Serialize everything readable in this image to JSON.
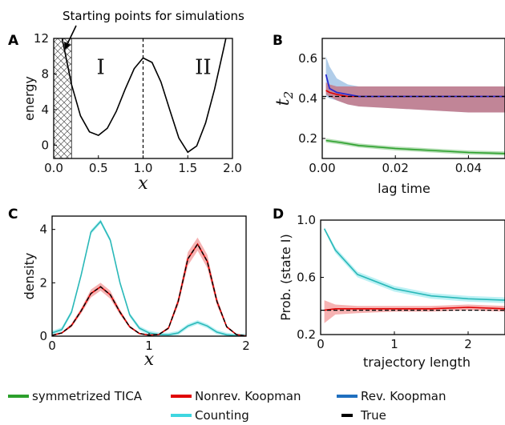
{
  "annotation": "Starting points for simulations",
  "legend": [
    {
      "label": "symmetrized TICA",
      "color": "#2ca02c"
    },
    {
      "label": "Nonrev. Koopman",
      "color": "#e00000"
    },
    {
      "label": "Rev. Koopman",
      "color": "#1f6fbf"
    },
    {
      "label": "Counting",
      "color": "#3fd6e0"
    },
    {
      "label": "True",
      "color": "#000000"
    }
  ],
  "chart_data": [
    {
      "panel": "A",
      "type": "line",
      "xlabel": "x",
      "ylabel": "energy",
      "xlim": [
        0,
        2
      ],
      "ylim": [
        -1.5,
        12
      ],
      "xticks": [
        "0.0",
        "0.5",
        "1.0",
        "1.5",
        "2.0"
      ],
      "yticks": [
        "0",
        "4",
        "8",
        "12"
      ],
      "region_labels": [
        "I",
        "II"
      ],
      "divider_x": 1.0,
      "hatched_region": [
        0.0,
        0.2
      ],
      "series": [
        {
          "x": [
            0.0,
            0.1,
            0.2,
            0.3,
            0.4,
            0.5,
            0.6,
            0.7,
            0.8,
            0.9,
            1.0,
            1.1,
            1.2,
            1.3,
            1.4,
            1.5,
            1.6,
            1.7,
            1.8,
            1.9,
            2.0
          ],
          "y": [
            18.0,
            11.7,
            6.8,
            3.3,
            1.5,
            1.1,
            1.9,
            3.8,
            6.3,
            8.6,
            9.8,
            9.3,
            7.1,
            3.9,
            0.8,
            -0.8,
            -0.1,
            2.5,
            6.3,
            10.8,
            15.4
          ]
        }
      ]
    },
    {
      "panel": "B",
      "type": "line",
      "xlabel": "lag time",
      "ylabel": "t2",
      "xlim": [
        0,
        0.05
      ],
      "ylim": [
        0.1,
        0.7
      ],
      "xticks": [
        "0.00",
        "0.02",
        "0.04"
      ],
      "yticks": [
        "0.2",
        "0.4",
        "0.6"
      ],
      "true_value": 0.41,
      "series": [
        {
          "name": "Nonrev. Koopman",
          "x": [
            0.001,
            0.002,
            0.004,
            0.007,
            0.01,
            0.02,
            0.03,
            0.04,
            0.05
          ],
          "y": [
            0.44,
            0.43,
            0.42,
            0.41,
            0.41,
            0.41,
            0.41,
            0.41,
            0.41
          ],
          "lower": [
            0.42,
            0.41,
            0.39,
            0.37,
            0.36,
            0.35,
            0.34,
            0.33,
            0.33
          ],
          "upper": [
            0.48,
            0.47,
            0.46,
            0.46,
            0.46,
            0.46,
            0.46,
            0.46,
            0.46
          ]
        },
        {
          "name": "Rev. Koopman",
          "x": [
            0.001,
            0.002,
            0.004,
            0.007,
            0.01,
            0.02,
            0.03,
            0.04,
            0.05
          ],
          "y": [
            0.52,
            0.45,
            0.43,
            0.42,
            0.41,
            0.41,
            0.41,
            0.41,
            0.41
          ],
          "lower": [
            0.41,
            0.4,
            0.39,
            0.37,
            0.36,
            0.35,
            0.34,
            0.33,
            0.33
          ],
          "upper": [
            0.61,
            0.56,
            0.5,
            0.47,
            0.46,
            0.46,
            0.46,
            0.46,
            0.46
          ]
        },
        {
          "name": "symmetrized TICA",
          "x": [
            0.001,
            0.005,
            0.01,
            0.02,
            0.03,
            0.04,
            0.05
          ],
          "y": [
            0.19,
            0.18,
            0.165,
            0.15,
            0.14,
            0.13,
            0.125
          ],
          "lower": [
            0.18,
            0.17,
            0.155,
            0.14,
            0.13,
            0.12,
            0.115
          ],
          "upper": [
            0.2,
            0.19,
            0.175,
            0.16,
            0.15,
            0.14,
            0.135
          ]
        }
      ]
    },
    {
      "panel": "C",
      "type": "line",
      "xlabel": "x",
      "ylabel": "density",
      "xlim": [
        0,
        2
      ],
      "ylim": [
        0,
        4.5
      ],
      "xticks": [
        "0",
        "1",
        "2"
      ],
      "yticks": [
        "0",
        "2",
        "4"
      ],
      "series": [
        {
          "name": "Counting",
          "x": [
            0.0,
            0.1,
            0.2,
            0.3,
            0.4,
            0.5,
            0.6,
            0.7,
            0.8,
            0.9,
            1.0,
            1.1,
            1.2,
            1.3,
            1.4,
            1.5,
            1.6,
            1.7,
            1.8,
            1.9,
            2.0
          ],
          "y": [
            0.12,
            0.25,
            0.9,
            2.3,
            3.9,
            4.3,
            3.6,
            2.0,
            0.8,
            0.3,
            0.12,
            0.06,
            0.05,
            0.12,
            0.38,
            0.52,
            0.38,
            0.15,
            0.05,
            0.02,
            0.01
          ]
        },
        {
          "name": "Nonrev. Koopman",
          "x": [
            0.0,
            0.1,
            0.2,
            0.3,
            0.4,
            0.5,
            0.6,
            0.7,
            0.8,
            0.9,
            1.0,
            1.1,
            1.2,
            1.3,
            1.4,
            1.5,
            1.6,
            1.7,
            1.8,
            1.9,
            2.0
          ],
          "y": [
            0.03,
            0.12,
            0.4,
            0.95,
            1.6,
            1.85,
            1.55,
            0.9,
            0.35,
            0.1,
            0.04,
            0.06,
            0.3,
            1.3,
            2.9,
            3.45,
            2.8,
            1.3,
            0.35,
            0.06,
            0.01
          ],
          "lower": [
            0.02,
            0.1,
            0.33,
            0.85,
            1.45,
            1.7,
            1.4,
            0.8,
            0.3,
            0.08,
            0.03,
            0.05,
            0.25,
            1.15,
            2.65,
            3.2,
            2.55,
            1.15,
            0.3,
            0.05,
            0.01
          ],
          "upper": [
            0.05,
            0.15,
            0.47,
            1.05,
            1.75,
            2.0,
            1.7,
            1.0,
            0.4,
            0.13,
            0.05,
            0.08,
            0.36,
            1.45,
            3.15,
            3.7,
            3.05,
            1.45,
            0.4,
            0.08,
            0.02
          ]
        },
        {
          "name": "True",
          "x": [
            0.0,
            0.1,
            0.2,
            0.3,
            0.4,
            0.5,
            0.6,
            0.7,
            0.8,
            0.9,
            1.0,
            1.1,
            1.2,
            1.3,
            1.4,
            1.5,
            1.6,
            1.7,
            1.8,
            1.9,
            2.0
          ],
          "y": [
            0.03,
            0.12,
            0.4,
            0.95,
            1.6,
            1.85,
            1.55,
            0.9,
            0.35,
            0.1,
            0.04,
            0.06,
            0.3,
            1.3,
            2.9,
            3.45,
            2.8,
            1.3,
            0.35,
            0.06,
            0.01
          ]
        }
      ]
    },
    {
      "panel": "D",
      "type": "line",
      "xlabel": "trajectory length",
      "ylabel": "Prob. (state I)",
      "xlim": [
        0,
        2.5
      ],
      "ylim": [
        0.2,
        1.0
      ],
      "xticks": [
        "0",
        "1",
        "2"
      ],
      "yticks": [
        "0.2",
        "0.6",
        "1.0"
      ],
      "true_value": 0.37,
      "series": [
        {
          "name": "Counting",
          "x": [
            0.05,
            0.2,
            0.5,
            1.0,
            1.5,
            2.0,
            2.5
          ],
          "y": [
            0.94,
            0.79,
            0.62,
            0.52,
            0.47,
            0.45,
            0.44
          ],
          "lower": [
            0.93,
            0.77,
            0.6,
            0.5,
            0.45,
            0.43,
            0.42
          ],
          "upper": [
            0.95,
            0.81,
            0.64,
            0.54,
            0.49,
            0.47,
            0.46
          ]
        },
        {
          "name": "Nonrev. Koopman",
          "x": [
            0.05,
            0.2,
            0.5,
            1.0,
            1.5,
            2.0,
            2.5
          ],
          "y": [
            0.37,
            0.38,
            0.38,
            0.38,
            0.38,
            0.39,
            0.38
          ],
          "lower": [
            0.28,
            0.34,
            0.35,
            0.36,
            0.36,
            0.37,
            0.36
          ],
          "upper": [
            0.44,
            0.41,
            0.4,
            0.4,
            0.4,
            0.41,
            0.4
          ]
        }
      ]
    }
  ]
}
